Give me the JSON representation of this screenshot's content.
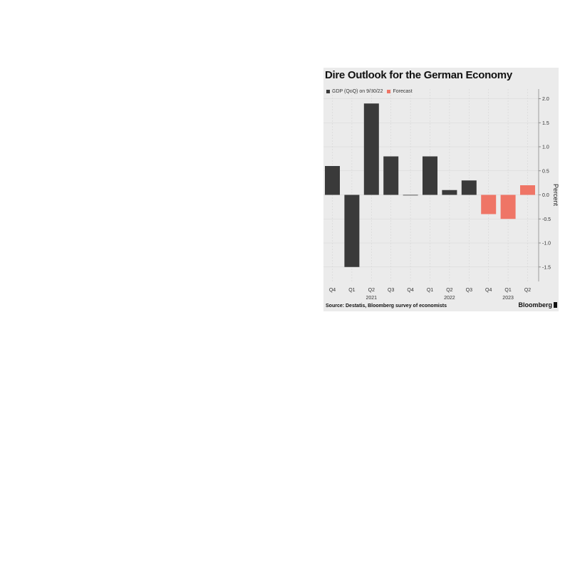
{
  "chart": {
    "title": "Dire Outlook for the German Economy",
    "legend": {
      "actual_label": "GDP (QoQ) on 9/30/22",
      "forecast_label": "Forecast"
    },
    "source": "Source: Destatis, Bloomberg survey of economists",
    "brand": "Bloomberg",
    "ylabel": "Percent"
  },
  "colors": {
    "actual": "#3a3a3a",
    "forecast": "#ef7566",
    "background": "#ebebeb"
  },
  "chart_data": {
    "type": "bar",
    "title": "Dire Outlook for the German Economy",
    "xlabel": "",
    "ylabel": "Percent",
    "categories": [
      "Q4",
      "Q1",
      "Q2",
      "Q3",
      "Q4",
      "Q1",
      "Q2",
      "Q3",
      "Q4",
      "Q1",
      "Q2"
    ],
    "year_labels": [
      {
        "label": "2021",
        "category_index": 2
      },
      {
        "label": "2022",
        "category_index": 6
      },
      {
        "label": "2023",
        "category_index": 9
      }
    ],
    "series": [
      {
        "name": "GDP (QoQ) on 9/30/22",
        "values": [
          0.6,
          -1.5,
          1.9,
          0.8,
          0.0,
          0.8,
          0.1,
          0.3,
          null,
          null,
          null
        ]
      },
      {
        "name": "Forecast",
        "values": [
          null,
          null,
          null,
          null,
          null,
          null,
          null,
          null,
          -0.4,
          -0.5,
          0.2
        ]
      }
    ],
    "ylim": [
      -1.8,
      2.2
    ],
    "yticks": [
      2.0,
      1.5,
      1.0,
      0.5,
      0.0,
      -0.5,
      -1.0,
      -1.5
    ],
    "ytick_labels": [
      "2.0",
      "1.5",
      "1.0",
      "0.5",
      "0.0",
      "-0.5",
      "-1.0",
      "-1.5"
    ],
    "y_axis_side": "right",
    "grid": true,
    "legend_position": "top-left"
  }
}
